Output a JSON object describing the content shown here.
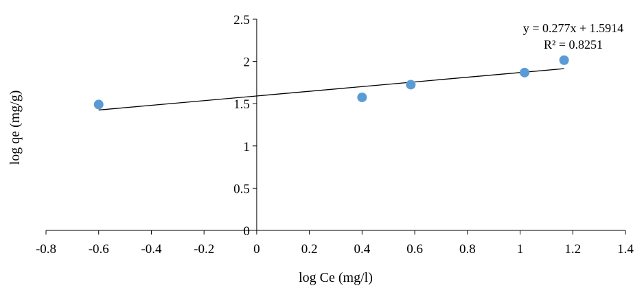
{
  "chart_data": {
    "type": "scatter",
    "title": "",
    "xlabel": "log Ce (mg/l)",
    "ylabel": "log qe (mg/g)",
    "xlim": [
      -0.8,
      1.4
    ],
    "ylim": [
      0,
      2.5
    ],
    "x_ticks": [
      "-0.8",
      "-0.6",
      "-0.4",
      "-0.2",
      "0",
      "0.2",
      "0.4",
      "0.6",
      "0.8",
      "1",
      "1.2",
      "1.4"
    ],
    "y_ticks": [
      "0",
      "0.5",
      "1",
      "1.5",
      "2",
      "2.5"
    ],
    "grid": false,
    "legend": "none",
    "series": [
      {
        "color": "#5b9bd5",
        "x": [
          -0.6,
          0.4,
          0.585,
          1.017,
          1.167
        ],
        "y": [
          1.49,
          1.575,
          1.725,
          1.868,
          2.015
        ]
      }
    ],
    "trendline": {
      "type": "linear",
      "slope": 0.277,
      "intercept": 1.5914,
      "x_range": [
        -0.6,
        1.167
      ],
      "color": "#000000"
    },
    "annotations": {
      "equation": "y = 0.277x + 1.5914",
      "r_squared": "R² = 0.8251"
    }
  }
}
